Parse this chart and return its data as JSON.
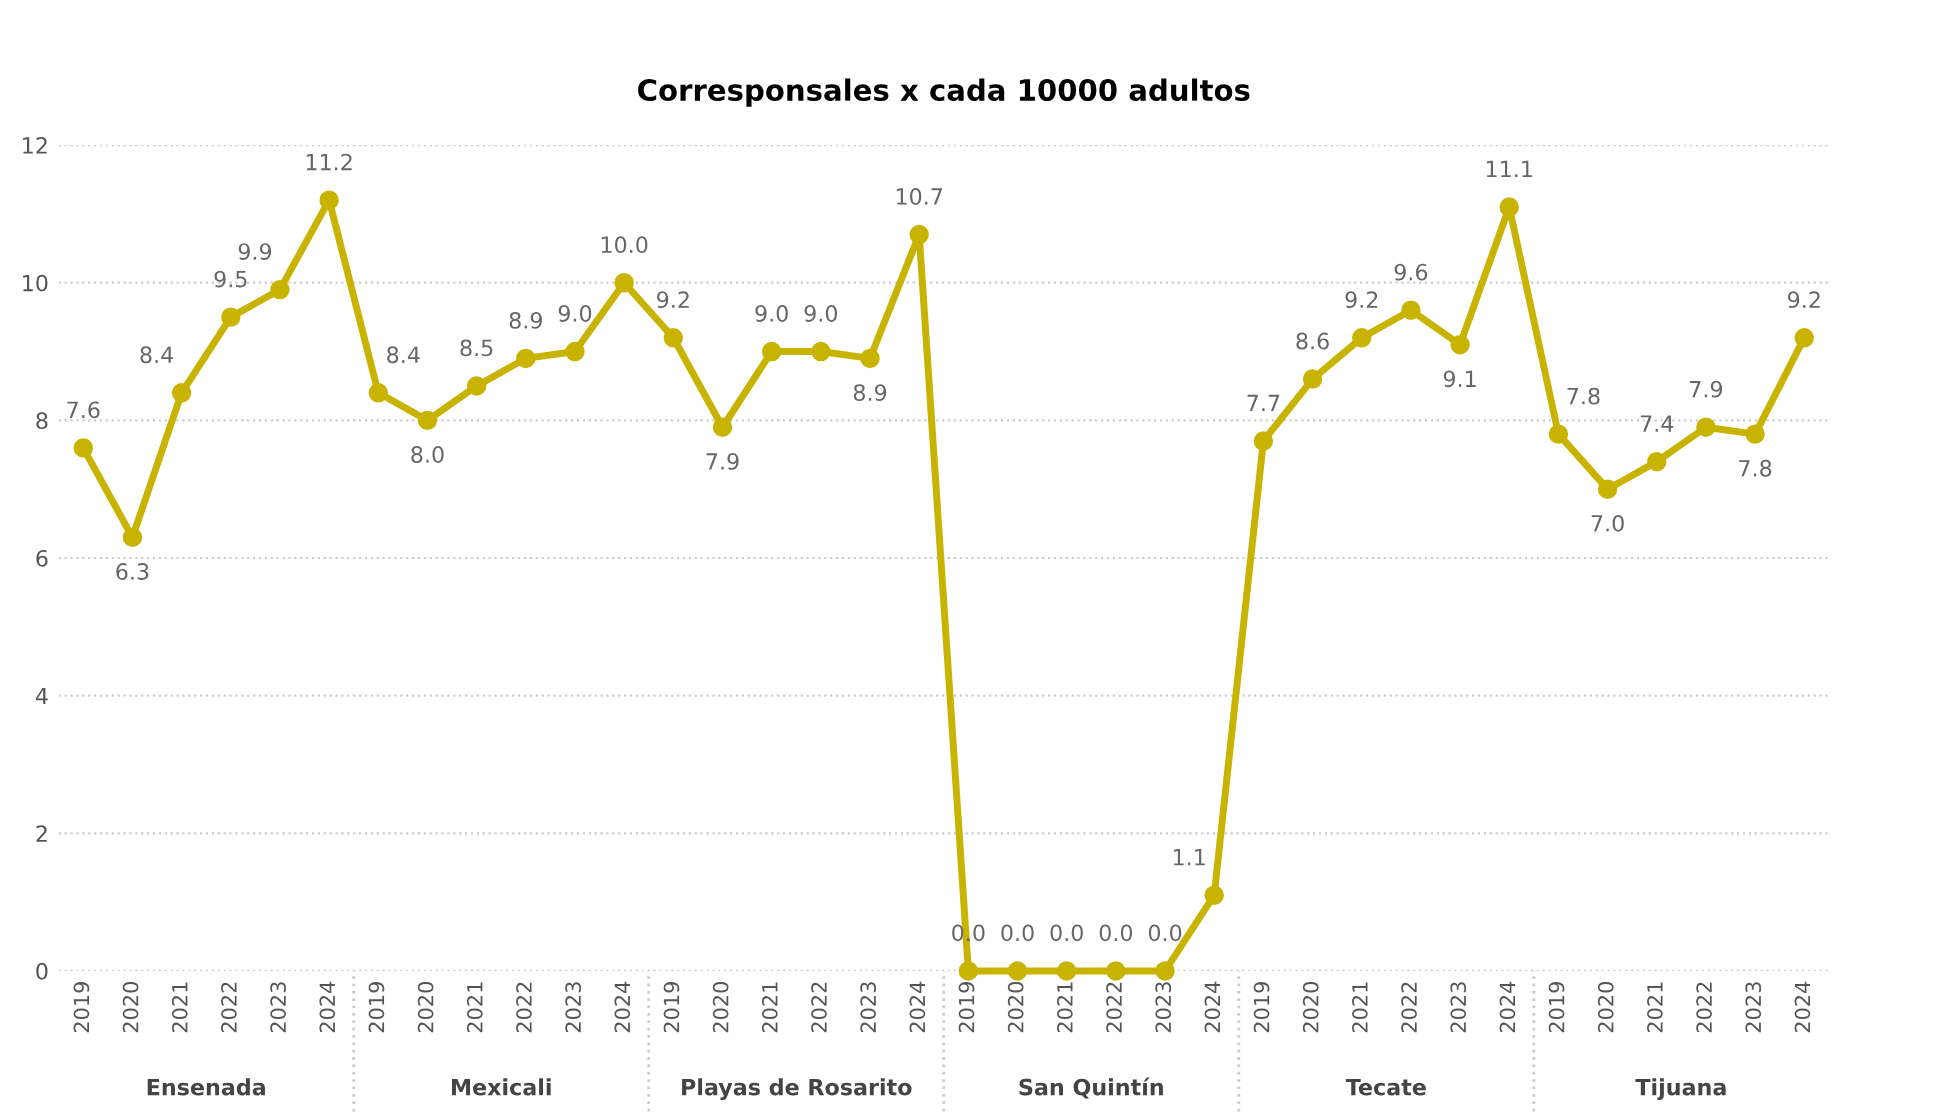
{
  "chart_data": {
    "type": "line",
    "title": "Corresponsales x cada 10000 adultos",
    "categories": [
      "2019",
      "2020",
      "2021",
      "2022",
      "2023",
      "2024",
      "2019",
      "2020",
      "2021",
      "2022",
      "2023",
      "2024",
      "2019",
      "2020",
      "2021",
      "2022",
      "2023",
      "2024",
      "2019",
      "2020",
      "2021",
      "2022",
      "2023",
      "2024",
      "2019",
      "2020",
      "2021",
      "2022",
      "2023",
      "2024",
      "2019",
      "2020",
      "2021",
      "2022",
      "2023",
      "2024"
    ],
    "series": [
      {
        "color": "#c8b400",
        "values": [
          7.6,
          6.3,
          8.4,
          9.5,
          9.9,
          11.2,
          8.4,
          8.0,
          8.5,
          8.9,
          9.0,
          10.0,
          9.2,
          7.9,
          9.0,
          9.0,
          8.9,
          10.7,
          0.0,
          0.0,
          0.0,
          0.0,
          0.0,
          1.1,
          7.7,
          8.6,
          9.2,
          9.6,
          9.1,
          11.1,
          7.8,
          7.0,
          7.4,
          7.9,
          7.8,
          9.2
        ]
      }
    ],
    "value_labels": [
      "7.6",
      "6.3",
      "8.4",
      "9.5",
      "9.9",
      "11.2",
      "8.4",
      "8.0",
      "8.5",
      "8.9",
      "9.0",
      "10.0",
      "9.2",
      "7.9",
      "9.0",
      "9.0",
      "8.9",
      "10.7",
      "0.0",
      "0.0",
      "0.0",
      "0.0",
      "0.0",
      "1.1",
      "7.7",
      "8.6",
      "9.2",
      "9.6",
      "9.1",
      "11.1",
      "7.8",
      "7.0",
      "7.4",
      "7.9",
      "7.8",
      "9.2"
    ],
    "annotations": [
      "Ensenada",
      "Mexicali",
      "Playas de Rosarito",
      "San Quintín",
      "Tecate",
      "Tijuana"
    ],
    "ylim": [
      0,
      12
    ],
    "yticks": [
      0,
      2,
      4,
      6,
      8,
      10,
      12
    ],
    "grid": "y",
    "marker": "circle",
    "line_style": "solid"
  }
}
